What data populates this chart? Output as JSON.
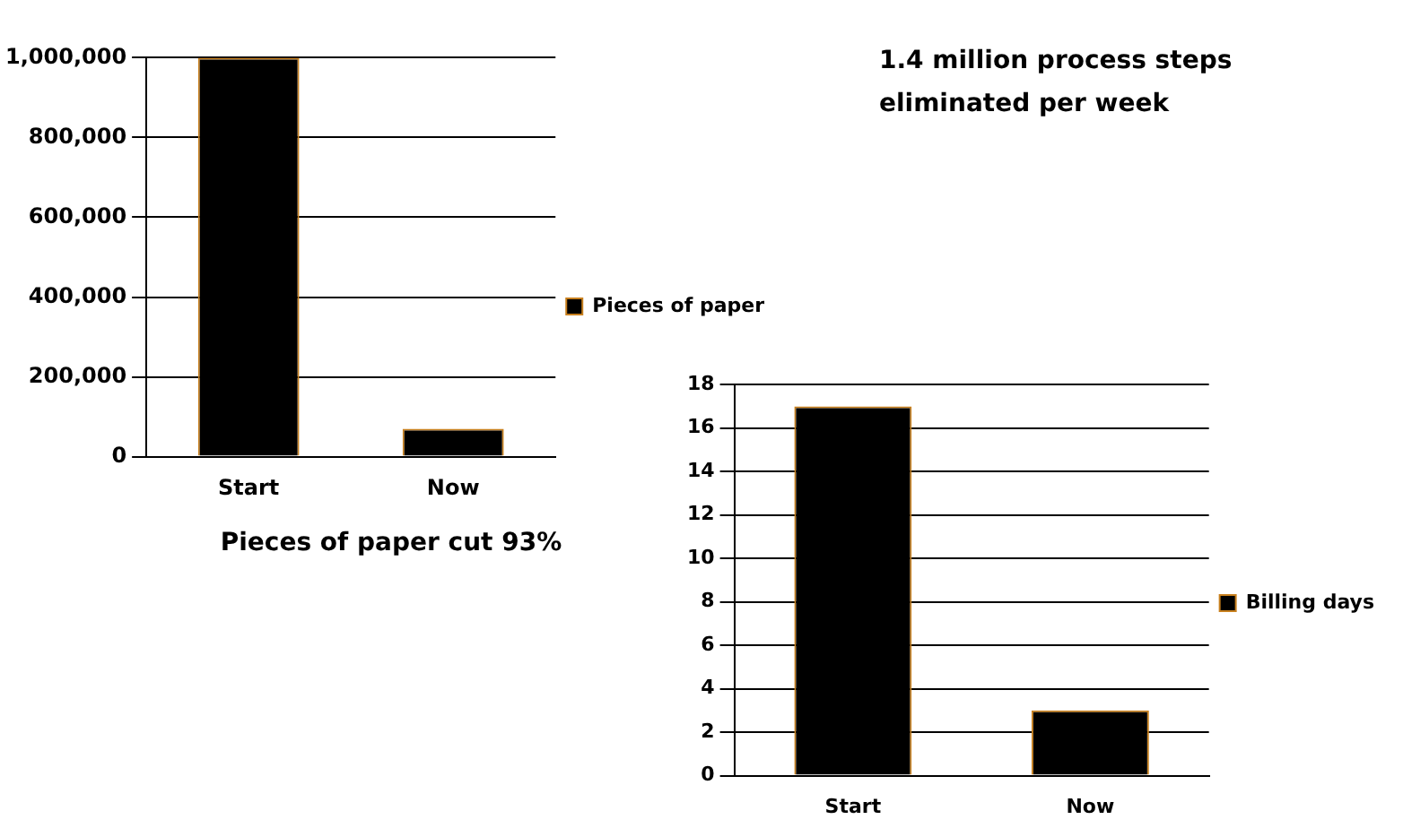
{
  "chart_data": [
    {
      "type": "bar",
      "title": "Pieces of paper cut 93%",
      "annotations": [
        "1.4 million process steps eliminated per week"
      ],
      "categories": [
        "Start",
        "Now"
      ],
      "series": [
        {
          "name": "Pieces of paper",
          "color": "#000000",
          "values": [
            1000000,
            70000
          ]
        }
      ],
      "ylim": [
        0,
        1000000
      ],
      "yticks": [
        {
          "value": 0,
          "label": "0"
        },
        {
          "value": 200000,
          "label": "200,000"
        },
        {
          "value": 400000,
          "label": "400,000"
        },
        {
          "value": 600000,
          "label": "600,000"
        },
        {
          "value": 800000,
          "label": "800,000"
        },
        {
          "value": 1000000,
          "label": "1,000,000"
        }
      ],
      "grid": "y",
      "legend": "right"
    },
    {
      "type": "bar",
      "categories": [
        "Start",
        "Now"
      ],
      "series": [
        {
          "name": "Billing days",
          "color": "#000000",
          "values": [
            17,
            3
          ]
        }
      ],
      "ylim": [
        0,
        18
      ],
      "yticks": [
        0,
        2,
        4,
        6,
        8,
        10,
        12,
        14,
        16,
        18
      ],
      "grid": "y",
      "legend": "right"
    }
  ]
}
